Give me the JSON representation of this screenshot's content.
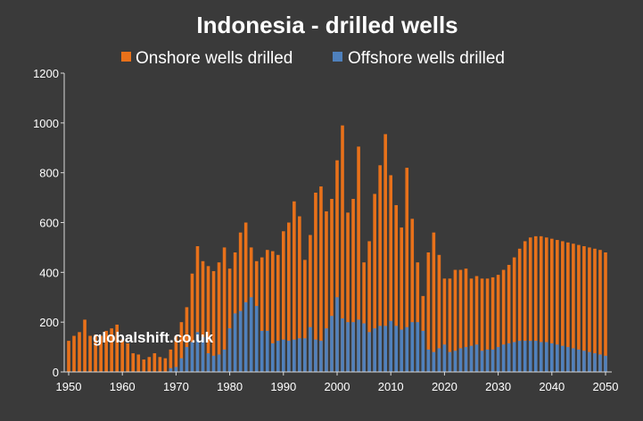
{
  "chart_data": {
    "type": "bar",
    "title": "Indonesia - drilled wells",
    "xlabel": "",
    "ylabel": "",
    "ylim": [
      0,
      1200
    ],
    "yticks": [
      0,
      200,
      400,
      600,
      800,
      1000,
      1200
    ],
    "xticks": [
      1950,
      1960,
      1970,
      1980,
      1990,
      2000,
      2010,
      2020,
      2030,
      2040,
      2050
    ],
    "grid": false,
    "legend": "top",
    "layout": "overlap",
    "x": [
      1950,
      1951,
      1952,
      1953,
      1954,
      1955,
      1956,
      1957,
      1958,
      1959,
      1960,
      1961,
      1962,
      1963,
      1964,
      1965,
      1966,
      1967,
      1968,
      1969,
      1970,
      1971,
      1972,
      1973,
      1974,
      1975,
      1976,
      1977,
      1978,
      1979,
      1980,
      1981,
      1982,
      1983,
      1984,
      1985,
      1986,
      1987,
      1988,
      1989,
      1990,
      1991,
      1992,
      1993,
      1994,
      1995,
      1996,
      1997,
      1998,
      1999,
      2000,
      2001,
      2002,
      2003,
      2004,
      2005,
      2006,
      2007,
      2008,
      2009,
      2010,
      2011,
      2012,
      2013,
      2014,
      2015,
      2016,
      2017,
      2018,
      2019,
      2020,
      2021,
      2022,
      2023,
      2024,
      2025,
      2026,
      2027,
      2028,
      2029,
      2030,
      2031,
      2032,
      2033,
      2034,
      2035,
      2036,
      2037,
      2038,
      2039,
      2040,
      2041,
      2042,
      2043,
      2044,
      2045,
      2046,
      2047,
      2048,
      2049,
      2050
    ],
    "series": [
      {
        "name": "Onshore wells drilled",
        "color": "#e8711a",
        "values": [
          125,
          145,
          160,
          210,
          145,
          150,
          145,
          165,
          175,
          190,
          130,
          115,
          75,
          70,
          50,
          60,
          75,
          60,
          55,
          90,
          145,
          200,
          260,
          395,
          505,
          445,
          425,
          405,
          440,
          500,
          415,
          480,
          560,
          600,
          500,
          445,
          460,
          490,
          485,
          470,
          565,
          600,
          685,
          625,
          450,
          550,
          720,
          745,
          645,
          695,
          850,
          990,
          640,
          695,
          905,
          440,
          525,
          715,
          830,
          955,
          790,
          670,
          580,
          820,
          615,
          440,
          305,
          480,
          560,
          470,
          375,
          375,
          410,
          410,
          415,
          375,
          385,
          375,
          375,
          380,
          390,
          410,
          430,
          460,
          495,
          525,
          540,
          545,
          545,
          540,
          535,
          530,
          525,
          520,
          515,
          510,
          505,
          500,
          495,
          490,
          480
        ]
      },
      {
        "name": "Offshore wells drilled",
        "color": "#4f81bd",
        "values": [
          0,
          0,
          0,
          0,
          0,
          0,
          0,
          0,
          0,
          0,
          0,
          0,
          0,
          0,
          0,
          0,
          0,
          0,
          0,
          15,
          20,
          55,
          100,
          120,
          160,
          140,
          75,
          65,
          70,
          90,
          175,
          235,
          245,
          280,
          300,
          265,
          165,
          165,
          115,
          125,
          130,
          125,
          130,
          135,
          135,
          180,
          130,
          125,
          175,
          225,
          300,
          215,
          200,
          200,
          210,
          195,
          160,
          175,
          185,
          185,
          205,
          185,
          170,
          180,
          200,
          200,
          165,
          90,
          80,
          95,
          110,
          80,
          85,
          95,
          100,
          105,
          110,
          85,
          90,
          90,
          100,
          110,
          115,
          120,
          125,
          125,
          125,
          125,
          120,
          120,
          115,
          110,
          105,
          100,
          95,
          90,
          85,
          80,
          75,
          70,
          65
        ]
      }
    ],
    "watermark": "globalshift.co.uk"
  }
}
